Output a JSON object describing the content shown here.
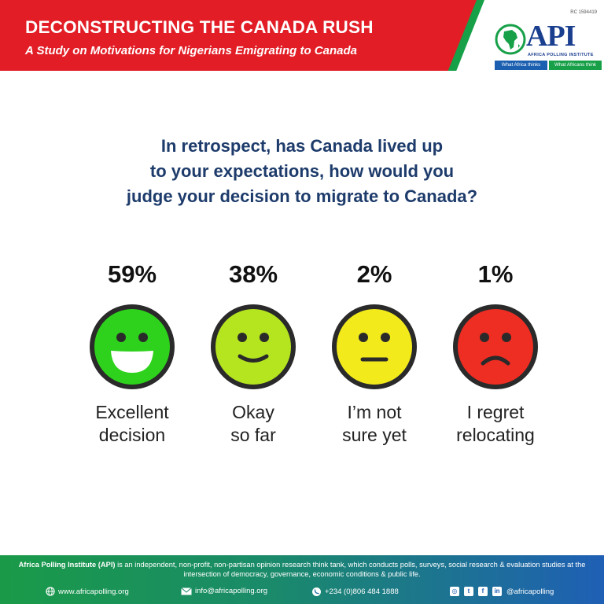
{
  "header": {
    "title": "DECONSTRUCTING THE CANADA RUSH",
    "subtitle": "A Study on Motivations for Nigerians Emigrating to Canada"
  },
  "logo": {
    "rc_number": "RC 1594419",
    "mark": "API",
    "name": "AFRICA POLLING INSTITUTE",
    "tag_left": "What Africa thinks",
    "tag_right": "What Africans think"
  },
  "question": {
    "lines": [
      "In retrospect, has Canada lived up",
      "to your expectations, how would you",
      "judge your decision to migrate to Canada?"
    ]
  },
  "options": [
    {
      "percent": "59%",
      "value": 59,
      "label_lines": [
        "Excellent",
        "decision"
      ],
      "face": "big-smile-face-icon",
      "color": "#2ed21c"
    },
    {
      "percent": "38%",
      "value": 38,
      "label_lines": [
        "Okay",
        "so far"
      ],
      "face": "smile-face-icon",
      "color": "#b4e51f"
    },
    {
      "percent": "2%",
      "value": 2,
      "label_lines": [
        "I’m not",
        "sure yet"
      ],
      "face": "neutral-face-icon",
      "color": "#f3ea1c"
    },
    {
      "percent": "1%",
      "value": 1,
      "label_lines": [
        "I regret",
        "relocating"
      ],
      "face": "sad-face-icon",
      "color": "#ee2d23"
    }
  ],
  "footer": {
    "org_name": "Africa Polling Institute (API)",
    "description": " is an independent, non-profit, non-partisan opinion research think tank, which conducts polls, surveys, social research & evaluation studies at the intersection of democracy, governance, economic conditions & public life.",
    "website": "www.africapolling.org",
    "email": "info@africapolling.org",
    "phone": "+234 (0)806 484 1888",
    "social_handle": "@africapolling"
  },
  "colors": {
    "banner_red": "#e21d26",
    "accent_green": "#17a048",
    "brand_blue": "#1b3f8f",
    "question_blue": "#1d3b6b"
  }
}
